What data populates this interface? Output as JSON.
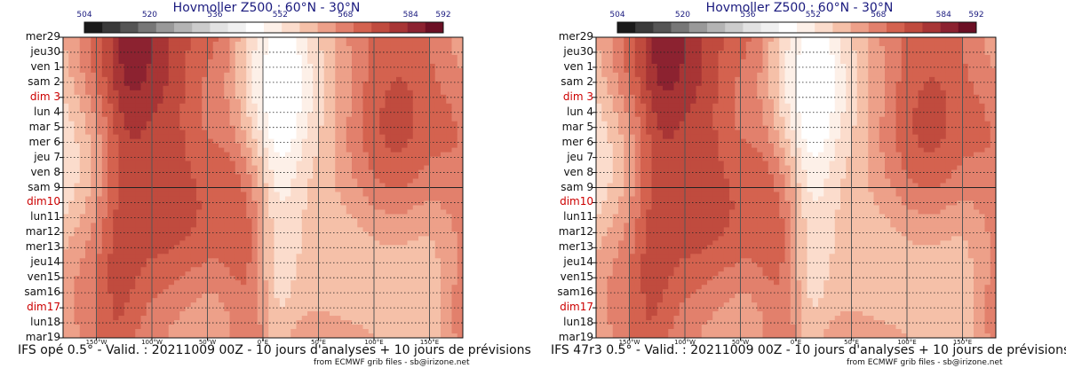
{
  "chart_data": [
    {
      "type": "heatmap",
      "title": "Hovmoller Z500 : 60°N - 30°N",
      "footer": "IFS opé 0.5° - Valid. : 20211009 00Z - 10 jours d'analyses + 10 jours de prévisions",
      "credit": "from ECMWF grib files - sb@irizone.net",
      "colorbar_ticks": [
        "504",
        "520",
        "536",
        "552",
        "568",
        "584",
        "592"
      ],
      "colorbar_range": [
        504,
        592
      ],
      "y_labels": [
        "mer29",
        "jeu30",
        "ven 1",
        "sam 2",
        "dim 3",
        "lun 4",
        "mar 5",
        "mer 6",
        "jeu 7",
        "ven 8",
        "sam 9",
        "dim10",
        "lun11",
        "mar12",
        "mer13",
        "jeu14",
        "ven15",
        "sam16",
        "dim17",
        "lun18",
        "mar19"
      ],
      "red_days": [
        "dim 3",
        "dim10",
        "dim17"
      ],
      "x_labels": [
        "150°W",
        "100°W",
        "50°W",
        "0°E",
        "50°E",
        "100°E",
        "150°E"
      ],
      "xlim": [
        -180,
        180
      ],
      "analysis_forecast_split": "sam 9"
    },
    {
      "type": "heatmap",
      "title": "Hovmoller Z500 : 60°N - 30°N",
      "footer": "IFS 47r3 0.5° - Valid. : 20211009 00Z - 10 jours d'analyses + 10 jours de prévisions",
      "credit": "from ECMWF grib files - sb@irizone.net",
      "colorbar_ticks": [
        "504",
        "520",
        "536",
        "552",
        "568",
        "584",
        "592"
      ],
      "colorbar_range": [
        504,
        592
      ],
      "y_labels": [
        "mer29",
        "jeu30",
        "ven 1",
        "sam 2",
        "dim 3",
        "lun 4",
        "mar 5",
        "mer 6",
        "jeu 7",
        "ven 8",
        "sam 9",
        "dim10",
        "lun11",
        "mar12",
        "mer13",
        "jeu14",
        "ven15",
        "sam16",
        "dim17",
        "lun18",
        "mar19"
      ],
      "red_days": [
        "dim 3",
        "dim10",
        "dim17"
      ],
      "x_labels": [
        "150°W",
        "100°W",
        "50°W",
        "0°E",
        "50°E",
        "100°E",
        "150°E"
      ],
      "xlim": [
        -180,
        180
      ],
      "analysis_forecast_split": "sam 9"
    }
  ],
  "colors": {
    "palette": [
      "#1a1a1a",
      "#3a3a3a",
      "#555555",
      "#777777",
      "#999999",
      "#b4b4b4",
      "#cccccc",
      "#e2e2e2",
      "#f0f0f0",
      "#ffffff",
      "#fdf0e8",
      "#fbdccc",
      "#f5c0a8",
      "#eda089",
      "#e2806c",
      "#d4624f",
      "#c04b3e",
      "#a83535",
      "#8c2230",
      "#6b0f24"
    ],
    "title": "#1a1a7e",
    "red_day": "#cc0000"
  }
}
